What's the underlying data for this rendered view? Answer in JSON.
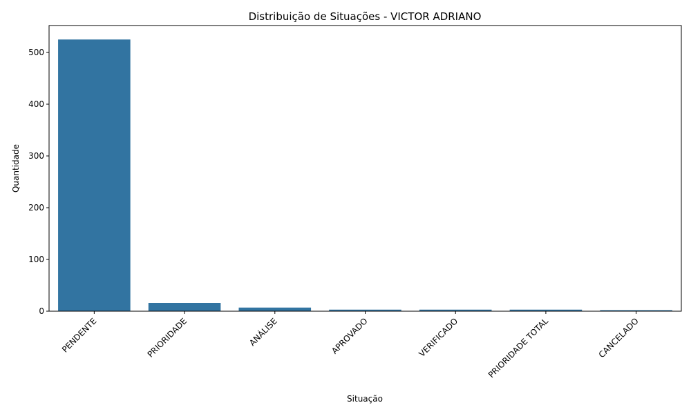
{
  "chart_data": {
    "type": "bar",
    "title": "Distribuição de Situações - VICTOR ADRIANO",
    "xlabel": "Situação",
    "ylabel": "Quantidade",
    "categories": [
      "PENDENTE",
      "PRIORIDADE",
      "ANÁLISE",
      "APROVADO",
      "VERIFICADO",
      "PRIORIDADE TOTAL",
      "CANCELADO"
    ],
    "values": [
      525,
      16,
      7,
      3,
      3,
      3,
      2
    ],
    "ylim": [
      0,
      552
    ],
    "yticks": [
      0,
      100,
      200,
      300,
      400,
      500
    ],
    "grid": false,
    "bar_color": "#3274a1"
  }
}
